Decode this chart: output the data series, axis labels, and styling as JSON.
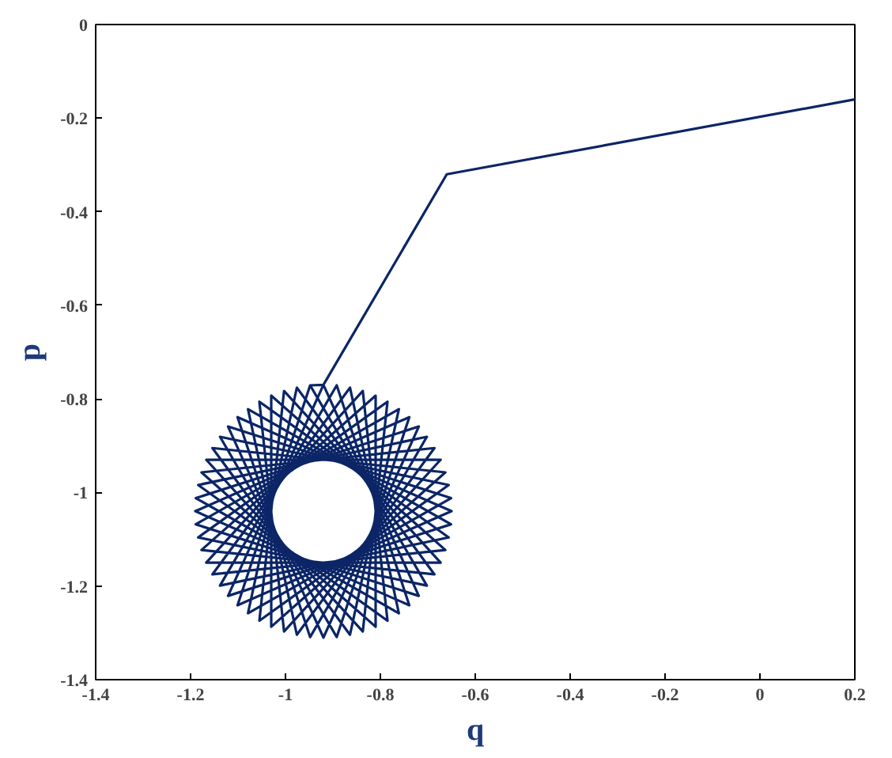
{
  "chart_data": {
    "type": "line",
    "xlabel": "q",
    "ylabel": "p",
    "xlim": [
      -1.4,
      0.2
    ],
    "ylim": [
      -1.4,
      0
    ],
    "xticks": [
      -1.4,
      -1.2,
      -1,
      -0.8,
      -0.6,
      -0.4,
      -0.2,
      0,
      0.2
    ],
    "yticks": [
      -1.4,
      -1.2,
      -1,
      -0.8,
      -0.6,
      -0.4,
      -0.2,
      0
    ],
    "grid": false,
    "marker": "none",
    "line_style": "solid",
    "series": [
      {
        "color": "#0b2566",
        "x": [
          0.2,
          -0.66,
          -0.92,
          -1.121,
          -0.651,
          -1.079,
          -0.976,
          -0.686,
          -1.177,
          -0.81,
          -0.81,
          -1.177,
          -0.686,
          -0.976,
          -1.079,
          -0.651,
          -1.121,
          -0.92,
          -0.719,
          -1.189,
          -0.761,
          -0.864,
          -1.154,
          -0.663,
          -1.03,
          -1.03,
          -0.663,
          -1.154,
          -0.864,
          -0.761,
          -1.189,
          -0.719,
          -0.92,
          -0.948,
          -1.101,
          -0.65,
          -1.101,
          -0.948,
          -0.702,
          -1.184,
          -0.785,
          -0.837,
          -1.167,
          -0.673,
          -1.003,
          -1.055,
          -0.656,
          -1.138,
          -0.892,
          -0.739,
          -1.19,
          -0.739,
          -0.892,
          -1.138,
          -0.656,
          -1.055,
          -1.003,
          -0.673,
          -1.167,
          -0.837,
          -0.785,
          -1.184,
          -0.702,
          -0.948
        ],
        "values": [
          -0.16,
          -0.32,
          -0.77,
          -1.221,
          -1.068,
          -0.822,
          -1.304,
          -0.905,
          -0.957,
          -1.287,
          -0.793,
          -1.123,
          -1.175,
          -0.776,
          -1.258,
          -1.012,
          -0.859,
          -1.31,
          -0.859,
          -1.012,
          -1.258,
          -0.776,
          -1.175,
          -1.123,
          -0.793,
          -1.287,
          -0.957,
          -0.905,
          -1.304,
          -0.822,
          -1.068,
          -1.221,
          -0.77,
          -0.771,
          -1.241,
          -1.04,
          -0.839,
          -1.309,
          -0.881,
          -0.984,
          -1.274,
          -0.783,
          -1.15,
          -1.15,
          -0.783,
          -1.274,
          -0.984,
          -0.881,
          -1.309,
          -0.839,
          -1.04,
          -1.241,
          -0.771,
          -1.199,
          -1.096,
          -0.806,
          -1.297,
          -0.93,
          -0.93,
          -1.297,
          -0.806,
          -1.096,
          -1.199,
          -0.771
        ]
      }
    ]
  }
}
